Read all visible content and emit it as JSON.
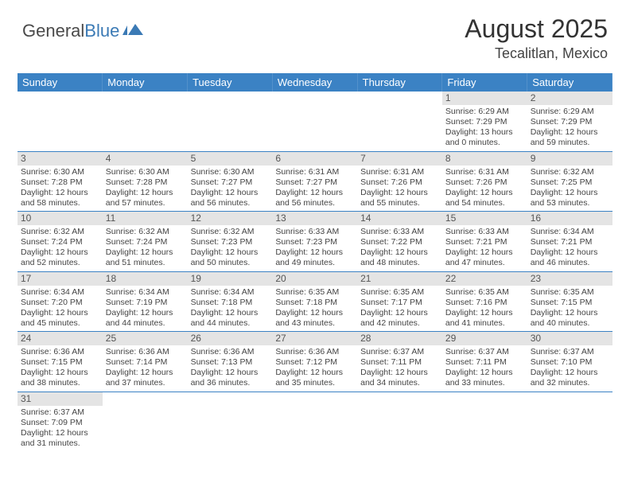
{
  "logo": {
    "text1": "General",
    "text2": "Blue"
  },
  "title": "August 2025",
  "location": "Tecalitlan, Mexico",
  "colors": {
    "header_bg": "#3b82c4",
    "header_text": "#ffffff",
    "daynum_bg": "#e4e4e4",
    "border": "#3b82c4",
    "logo_blue": "#3b7ab5"
  },
  "weekdays": [
    "Sunday",
    "Monday",
    "Tuesday",
    "Wednesday",
    "Thursday",
    "Friday",
    "Saturday"
  ],
  "weeks": [
    [
      null,
      null,
      null,
      null,
      null,
      {
        "n": "1",
        "sr": "Sunrise: 6:29 AM",
        "ss": "Sunset: 7:29 PM",
        "d1": "Daylight: 13 hours",
        "d2": "and 0 minutes."
      },
      {
        "n": "2",
        "sr": "Sunrise: 6:29 AM",
        "ss": "Sunset: 7:29 PM",
        "d1": "Daylight: 12 hours",
        "d2": "and 59 minutes."
      }
    ],
    [
      {
        "n": "3",
        "sr": "Sunrise: 6:30 AM",
        "ss": "Sunset: 7:28 PM",
        "d1": "Daylight: 12 hours",
        "d2": "and 58 minutes."
      },
      {
        "n": "4",
        "sr": "Sunrise: 6:30 AM",
        "ss": "Sunset: 7:28 PM",
        "d1": "Daylight: 12 hours",
        "d2": "and 57 minutes."
      },
      {
        "n": "5",
        "sr": "Sunrise: 6:30 AM",
        "ss": "Sunset: 7:27 PM",
        "d1": "Daylight: 12 hours",
        "d2": "and 56 minutes."
      },
      {
        "n": "6",
        "sr": "Sunrise: 6:31 AM",
        "ss": "Sunset: 7:27 PM",
        "d1": "Daylight: 12 hours",
        "d2": "and 56 minutes."
      },
      {
        "n": "7",
        "sr": "Sunrise: 6:31 AM",
        "ss": "Sunset: 7:26 PM",
        "d1": "Daylight: 12 hours",
        "d2": "and 55 minutes."
      },
      {
        "n": "8",
        "sr": "Sunrise: 6:31 AM",
        "ss": "Sunset: 7:26 PM",
        "d1": "Daylight: 12 hours",
        "d2": "and 54 minutes."
      },
      {
        "n": "9",
        "sr": "Sunrise: 6:32 AM",
        "ss": "Sunset: 7:25 PM",
        "d1": "Daylight: 12 hours",
        "d2": "and 53 minutes."
      }
    ],
    [
      {
        "n": "10",
        "sr": "Sunrise: 6:32 AM",
        "ss": "Sunset: 7:24 PM",
        "d1": "Daylight: 12 hours",
        "d2": "and 52 minutes."
      },
      {
        "n": "11",
        "sr": "Sunrise: 6:32 AM",
        "ss": "Sunset: 7:24 PM",
        "d1": "Daylight: 12 hours",
        "d2": "and 51 minutes."
      },
      {
        "n": "12",
        "sr": "Sunrise: 6:32 AM",
        "ss": "Sunset: 7:23 PM",
        "d1": "Daylight: 12 hours",
        "d2": "and 50 minutes."
      },
      {
        "n": "13",
        "sr": "Sunrise: 6:33 AM",
        "ss": "Sunset: 7:23 PM",
        "d1": "Daylight: 12 hours",
        "d2": "and 49 minutes."
      },
      {
        "n": "14",
        "sr": "Sunrise: 6:33 AM",
        "ss": "Sunset: 7:22 PM",
        "d1": "Daylight: 12 hours",
        "d2": "and 48 minutes."
      },
      {
        "n": "15",
        "sr": "Sunrise: 6:33 AM",
        "ss": "Sunset: 7:21 PM",
        "d1": "Daylight: 12 hours",
        "d2": "and 47 minutes."
      },
      {
        "n": "16",
        "sr": "Sunrise: 6:34 AM",
        "ss": "Sunset: 7:21 PM",
        "d1": "Daylight: 12 hours",
        "d2": "and 46 minutes."
      }
    ],
    [
      {
        "n": "17",
        "sr": "Sunrise: 6:34 AM",
        "ss": "Sunset: 7:20 PM",
        "d1": "Daylight: 12 hours",
        "d2": "and 45 minutes."
      },
      {
        "n": "18",
        "sr": "Sunrise: 6:34 AM",
        "ss": "Sunset: 7:19 PM",
        "d1": "Daylight: 12 hours",
        "d2": "and 44 minutes."
      },
      {
        "n": "19",
        "sr": "Sunrise: 6:34 AM",
        "ss": "Sunset: 7:18 PM",
        "d1": "Daylight: 12 hours",
        "d2": "and 44 minutes."
      },
      {
        "n": "20",
        "sr": "Sunrise: 6:35 AM",
        "ss": "Sunset: 7:18 PM",
        "d1": "Daylight: 12 hours",
        "d2": "and 43 minutes."
      },
      {
        "n": "21",
        "sr": "Sunrise: 6:35 AM",
        "ss": "Sunset: 7:17 PM",
        "d1": "Daylight: 12 hours",
        "d2": "and 42 minutes."
      },
      {
        "n": "22",
        "sr": "Sunrise: 6:35 AM",
        "ss": "Sunset: 7:16 PM",
        "d1": "Daylight: 12 hours",
        "d2": "and 41 minutes."
      },
      {
        "n": "23",
        "sr": "Sunrise: 6:35 AM",
        "ss": "Sunset: 7:15 PM",
        "d1": "Daylight: 12 hours",
        "d2": "and 40 minutes."
      }
    ],
    [
      {
        "n": "24",
        "sr": "Sunrise: 6:36 AM",
        "ss": "Sunset: 7:15 PM",
        "d1": "Daylight: 12 hours",
        "d2": "and 38 minutes."
      },
      {
        "n": "25",
        "sr": "Sunrise: 6:36 AM",
        "ss": "Sunset: 7:14 PM",
        "d1": "Daylight: 12 hours",
        "d2": "and 37 minutes."
      },
      {
        "n": "26",
        "sr": "Sunrise: 6:36 AM",
        "ss": "Sunset: 7:13 PM",
        "d1": "Daylight: 12 hours",
        "d2": "and 36 minutes."
      },
      {
        "n": "27",
        "sr": "Sunrise: 6:36 AM",
        "ss": "Sunset: 7:12 PM",
        "d1": "Daylight: 12 hours",
        "d2": "and 35 minutes."
      },
      {
        "n": "28",
        "sr": "Sunrise: 6:37 AM",
        "ss": "Sunset: 7:11 PM",
        "d1": "Daylight: 12 hours",
        "d2": "and 34 minutes."
      },
      {
        "n": "29",
        "sr": "Sunrise: 6:37 AM",
        "ss": "Sunset: 7:11 PM",
        "d1": "Daylight: 12 hours",
        "d2": "and 33 minutes."
      },
      {
        "n": "30",
        "sr": "Sunrise: 6:37 AM",
        "ss": "Sunset: 7:10 PM",
        "d1": "Daylight: 12 hours",
        "d2": "and 32 minutes."
      }
    ],
    [
      {
        "n": "31",
        "sr": "Sunrise: 6:37 AM",
        "ss": "Sunset: 7:09 PM",
        "d1": "Daylight: 12 hours",
        "d2": "and 31 minutes."
      },
      null,
      null,
      null,
      null,
      null,
      null
    ]
  ]
}
